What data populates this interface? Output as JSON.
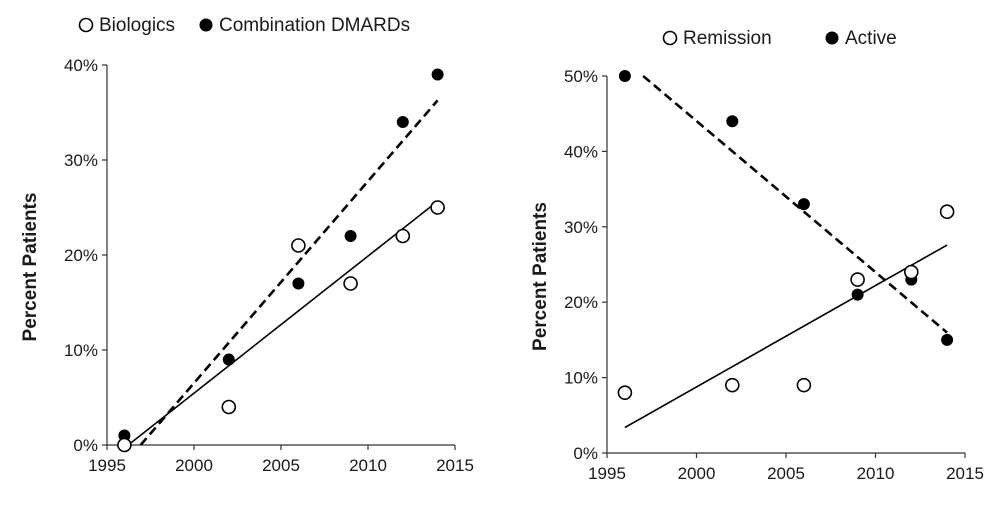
{
  "chart_data": [
    {
      "type": "scatter",
      "ylabel": "Percent Patients",
      "xlim": [
        1995,
        2015
      ],
      "ylim": [
        0,
        40
      ],
      "x_ticks": [
        "1995",
        "2000",
        "2005",
        "2010",
        "2015"
      ],
      "y_ticks": [
        "0%",
        "10%",
        "20%",
        "30%",
        "40%"
      ],
      "legend_position": "top",
      "series": [
        {
          "name": "Biologics",
          "marker": "open-circle",
          "trendline": "solid",
          "x": [
            1996,
            2002,
            2006,
            2009,
            2012,
            2014
          ],
          "y": [
            0,
            4,
            21,
            17,
            22,
            25
          ]
        },
        {
          "name": "Combination DMARDs",
          "marker": "filled-circle",
          "trendline": "dashed",
          "x": [
            1996,
            2002,
            2006,
            2009,
            2012,
            2014
          ],
          "y": [
            1,
            9,
            17,
            22,
            34,
            39
          ]
        }
      ]
    },
    {
      "type": "scatter",
      "ylabel": "Percent Patients",
      "xlim": [
        1995,
        2015
      ],
      "ylim": [
        0,
        50
      ],
      "x_ticks": [
        "1995",
        "2000",
        "2005",
        "2010",
        "2015"
      ],
      "y_ticks": [
        "0%",
        "10%",
        "20%",
        "30%",
        "40%",
        "50%"
      ],
      "legend_position": "top",
      "series": [
        {
          "name": "Remission",
          "marker": "open-circle",
          "trendline": "solid",
          "x": [
            1996,
            2002,
            2006,
            2009,
            2012,
            2014
          ],
          "y": [
            8,
            9,
            9,
            23,
            24,
            32
          ]
        },
        {
          "name": "Active",
          "marker": "filled-circle",
          "trendline": "dashed",
          "x": [
            1996,
            2002,
            2006,
            2009,
            2012,
            2014
          ],
          "y": [
            50,
            44,
            33,
            21,
            23,
            15
          ]
        }
      ]
    }
  ]
}
